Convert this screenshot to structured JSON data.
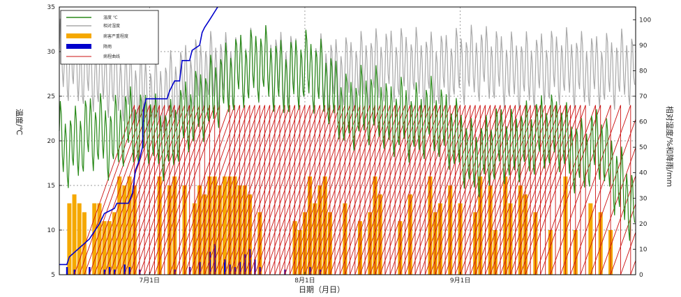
{
  "chart_data": {
    "type": "line",
    "xlabel": "日期（月日）",
    "ylabel_left": "温度/℃",
    "ylabel_right": "相对湿度/%和降雨/mm",
    "ylim_left": [
      5,
      35
    ],
    "yticks_left": [
      5,
      10,
      15,
      20,
      25,
      30,
      35
    ],
    "ylim_right": [
      0,
      105
    ],
    "yticks_right": [
      0,
      10,
      20,
      30,
      40,
      50,
      60,
      70,
      80,
      90,
      100
    ],
    "x_range_days": [
      0,
      115
    ],
    "x_ticks": [
      {
        "day": 18,
        "label": "7月1日"
      },
      {
        "day": 49,
        "label": "8月1日"
      },
      {
        "day": 80,
        "label": "9月1日"
      }
    ],
    "grid": true,
    "legend_position": "top-left",
    "legend": [
      {
        "label": "温度 ℃",
        "kind": "line",
        "color": "#2a8a1a"
      },
      {
        "label": "相对湿度",
        "kind": "line",
        "color": "#a8a8a8"
      },
      {
        "label": "病害严重程度",
        "kind": "bar",
        "color": "#f5a800"
      },
      {
        "label": "降雨",
        "kind": "bar",
        "color": "#0000cc"
      },
      {
        "label": "病程曲线",
        "kind": "line",
        "color": "#cc1111"
      }
    ],
    "series": [
      {
        "key": "temperature",
        "axis": "left",
        "color": "#2a8a1a",
        "x": [
          0,
          2,
          4,
          6,
          8,
          10,
          12,
          14,
          16,
          18,
          20,
          22,
          24,
          26,
          28,
          30,
          32,
          34,
          36,
          38,
          40,
          42,
          44,
          46,
          48,
          50,
          52,
          54,
          56,
          58,
          60,
          62,
          64,
          66,
          68,
          70,
          72,
          74,
          76,
          78,
          80,
          82,
          84,
          86,
          88,
          90,
          92,
          94,
          96,
          98,
          100,
          102,
          104,
          106,
          108,
          110,
          112,
          114
        ],
        "mean": [
          20,
          19,
          20,
          21,
          21,
          20,
          21,
          22,
          21,
          22,
          20,
          20,
          22,
          23,
          24,
          25,
          26,
          27,
          28,
          28,
          29,
          28,
          27,
          27,
          28,
          28,
          27,
          26,
          24,
          23,
          24,
          24,
          24,
          22,
          23,
          22,
          22,
          23,
          22,
          21,
          20,
          18,
          18,
          19,
          20,
          19,
          20,
          20,
          21,
          21,
          21,
          19,
          18,
          19,
          20,
          17,
          15,
          13
        ],
        "amp": 3.5
      },
      {
        "key": "relative_humidity",
        "axis": "right",
        "color": "#a8a8a8",
        "x": [
          0,
          5,
          10,
          15,
          20,
          25,
          30,
          35,
          40,
          45,
          50,
          55,
          60,
          65,
          70,
          75,
          80,
          85,
          90,
          95,
          100,
          105,
          110,
          115
        ],
        "mean": [
          85,
          80,
          77,
          73,
          70,
          76,
          80,
          80,
          83,
          80,
          80,
          78,
          80,
          82,
          82,
          80,
          82,
          83,
          80,
          80,
          82,
          80,
          80,
          82
        ],
        "amp": 12
      },
      {
        "key": "cumulative_rainfall",
        "axis": "right",
        "color": "#0000cc",
        "points": [
          [
            0,
            4
          ],
          [
            1.5,
            4
          ],
          [
            2,
            7
          ],
          [
            6,
            14
          ],
          [
            8,
            20
          ],
          [
            9,
            24
          ],
          [
            10,
            25
          ],
          [
            11,
            26
          ],
          [
            11.5,
            28
          ],
          [
            13.8,
            28
          ],
          [
            14.2,
            30
          ],
          [
            14.6,
            32
          ],
          [
            15.2,
            41
          ],
          [
            16,
            45
          ],
          [
            16.6,
            50
          ],
          [
            16.8,
            65
          ],
          [
            17.3,
            69
          ],
          [
            21.5,
            69
          ],
          [
            22,
            72
          ],
          [
            23,
            76
          ],
          [
            24,
            76
          ],
          [
            24.5,
            84
          ],
          [
            26,
            84
          ],
          [
            26.5,
            88
          ],
          [
            28,
            90
          ],
          [
            28.5,
            95
          ],
          [
            29,
            97
          ],
          [
            30,
            100
          ],
          [
            31.6,
            105
          ]
        ]
      },
      {
        "key": "disease_progress",
        "axis": "left",
        "color": "#cc1111",
        "start_days": [
          3,
          4,
          5,
          6,
          7,
          8,
          9,
          10,
          11,
          12,
          13,
          14,
          15,
          16,
          17,
          18,
          19,
          20,
          22,
          23,
          24,
          25,
          26,
          27,
          28,
          29,
          30,
          31,
          32,
          33,
          34,
          35,
          36,
          37,
          38,
          39,
          40,
          41,
          42,
          43,
          44,
          45,
          46,
          47,
          48,
          49,
          50,
          51,
          52,
          53,
          54,
          55,
          56,
          57,
          58,
          59,
          60,
          61,
          62,
          63,
          64,
          65,
          66,
          67,
          68,
          69,
          70,
          71,
          72,
          73,
          74,
          75,
          76,
          77,
          78,
          79,
          80,
          81,
          82,
          83,
          84,
          85,
          86,
          87,
          88,
          89,
          90,
          91,
          92,
          93,
          95,
          96,
          98,
          100,
          102,
          104,
          106,
          108,
          110,
          112,
          114
        ],
        "rise_days": 12,
        "min": 5,
        "max": 24
      },
      {
        "key": "disease_severity",
        "axis": "left",
        "color": "#f5a800",
        "bars": [
          [
            2,
            13
          ],
          [
            3,
            14
          ],
          [
            4,
            13
          ],
          [
            5,
            12
          ],
          [
            7,
            13
          ],
          [
            8,
            13
          ],
          [
            9,
            11
          ],
          [
            10,
            11
          ],
          [
            11,
            12
          ],
          [
            12,
            16
          ],
          [
            13,
            15
          ],
          [
            14,
            16
          ],
          [
            15,
            15
          ],
          [
            20,
            16
          ],
          [
            22,
            15
          ],
          [
            23,
            16
          ],
          [
            25,
            15
          ],
          [
            27,
            13
          ],
          [
            28,
            15
          ],
          [
            29,
            14
          ],
          [
            30,
            16
          ],
          [
            31,
            16
          ],
          [
            32,
            15
          ],
          [
            33,
            16
          ],
          [
            34,
            16
          ],
          [
            35,
            16
          ],
          [
            36,
            15
          ],
          [
            37,
            15
          ],
          [
            38,
            14
          ],
          [
            40,
            12
          ],
          [
            47,
            11
          ],
          [
            48,
            10
          ],
          [
            49,
            12
          ],
          [
            50,
            16
          ],
          [
            51,
            13
          ],
          [
            52,
            15
          ],
          [
            53,
            16
          ],
          [
            54,
            12
          ],
          [
            57,
            13
          ],
          [
            60,
            11
          ],
          [
            62,
            12
          ],
          [
            63,
            16
          ],
          [
            64,
            14
          ],
          [
            68,
            11
          ],
          [
            70,
            14
          ],
          [
            74,
            16
          ],
          [
            75,
            12
          ],
          [
            76,
            13
          ],
          [
            78,
            15
          ],
          [
            80,
            13
          ],
          [
            83,
            12
          ],
          [
            84,
            16
          ],
          [
            86,
            15
          ],
          [
            87,
            10
          ],
          [
            89,
            16
          ],
          [
            90,
            13
          ],
          [
            92,
            15
          ],
          [
            93,
            14
          ],
          [
            95,
            12
          ],
          [
            98,
            10
          ],
          [
            101,
            16
          ],
          [
            103,
            10
          ],
          [
            106,
            13
          ],
          [
            108,
            12
          ],
          [
            110,
            10
          ]
        ]
      },
      {
        "key": "daily_rainfall",
        "axis": "right",
        "color": "#0000cc",
        "bars": [
          [
            1.5,
            3
          ],
          [
            3,
            2
          ],
          [
            6,
            3
          ],
          [
            9,
            2
          ],
          [
            10,
            3
          ],
          [
            11,
            2
          ],
          [
            13,
            4
          ],
          [
            14,
            3
          ],
          [
            16,
            2
          ],
          [
            23,
            2
          ],
          [
            26,
            3
          ],
          [
            28,
            5
          ],
          [
            30,
            9
          ],
          [
            31,
            12
          ],
          [
            33,
            6
          ],
          [
            34,
            4
          ],
          [
            35,
            3
          ],
          [
            36,
            5
          ],
          [
            37,
            8
          ],
          [
            38,
            10
          ],
          [
            39,
            6
          ],
          [
            40,
            3
          ],
          [
            45,
            2
          ],
          [
            50,
            3
          ],
          [
            52,
            2
          ]
        ]
      }
    ]
  }
}
